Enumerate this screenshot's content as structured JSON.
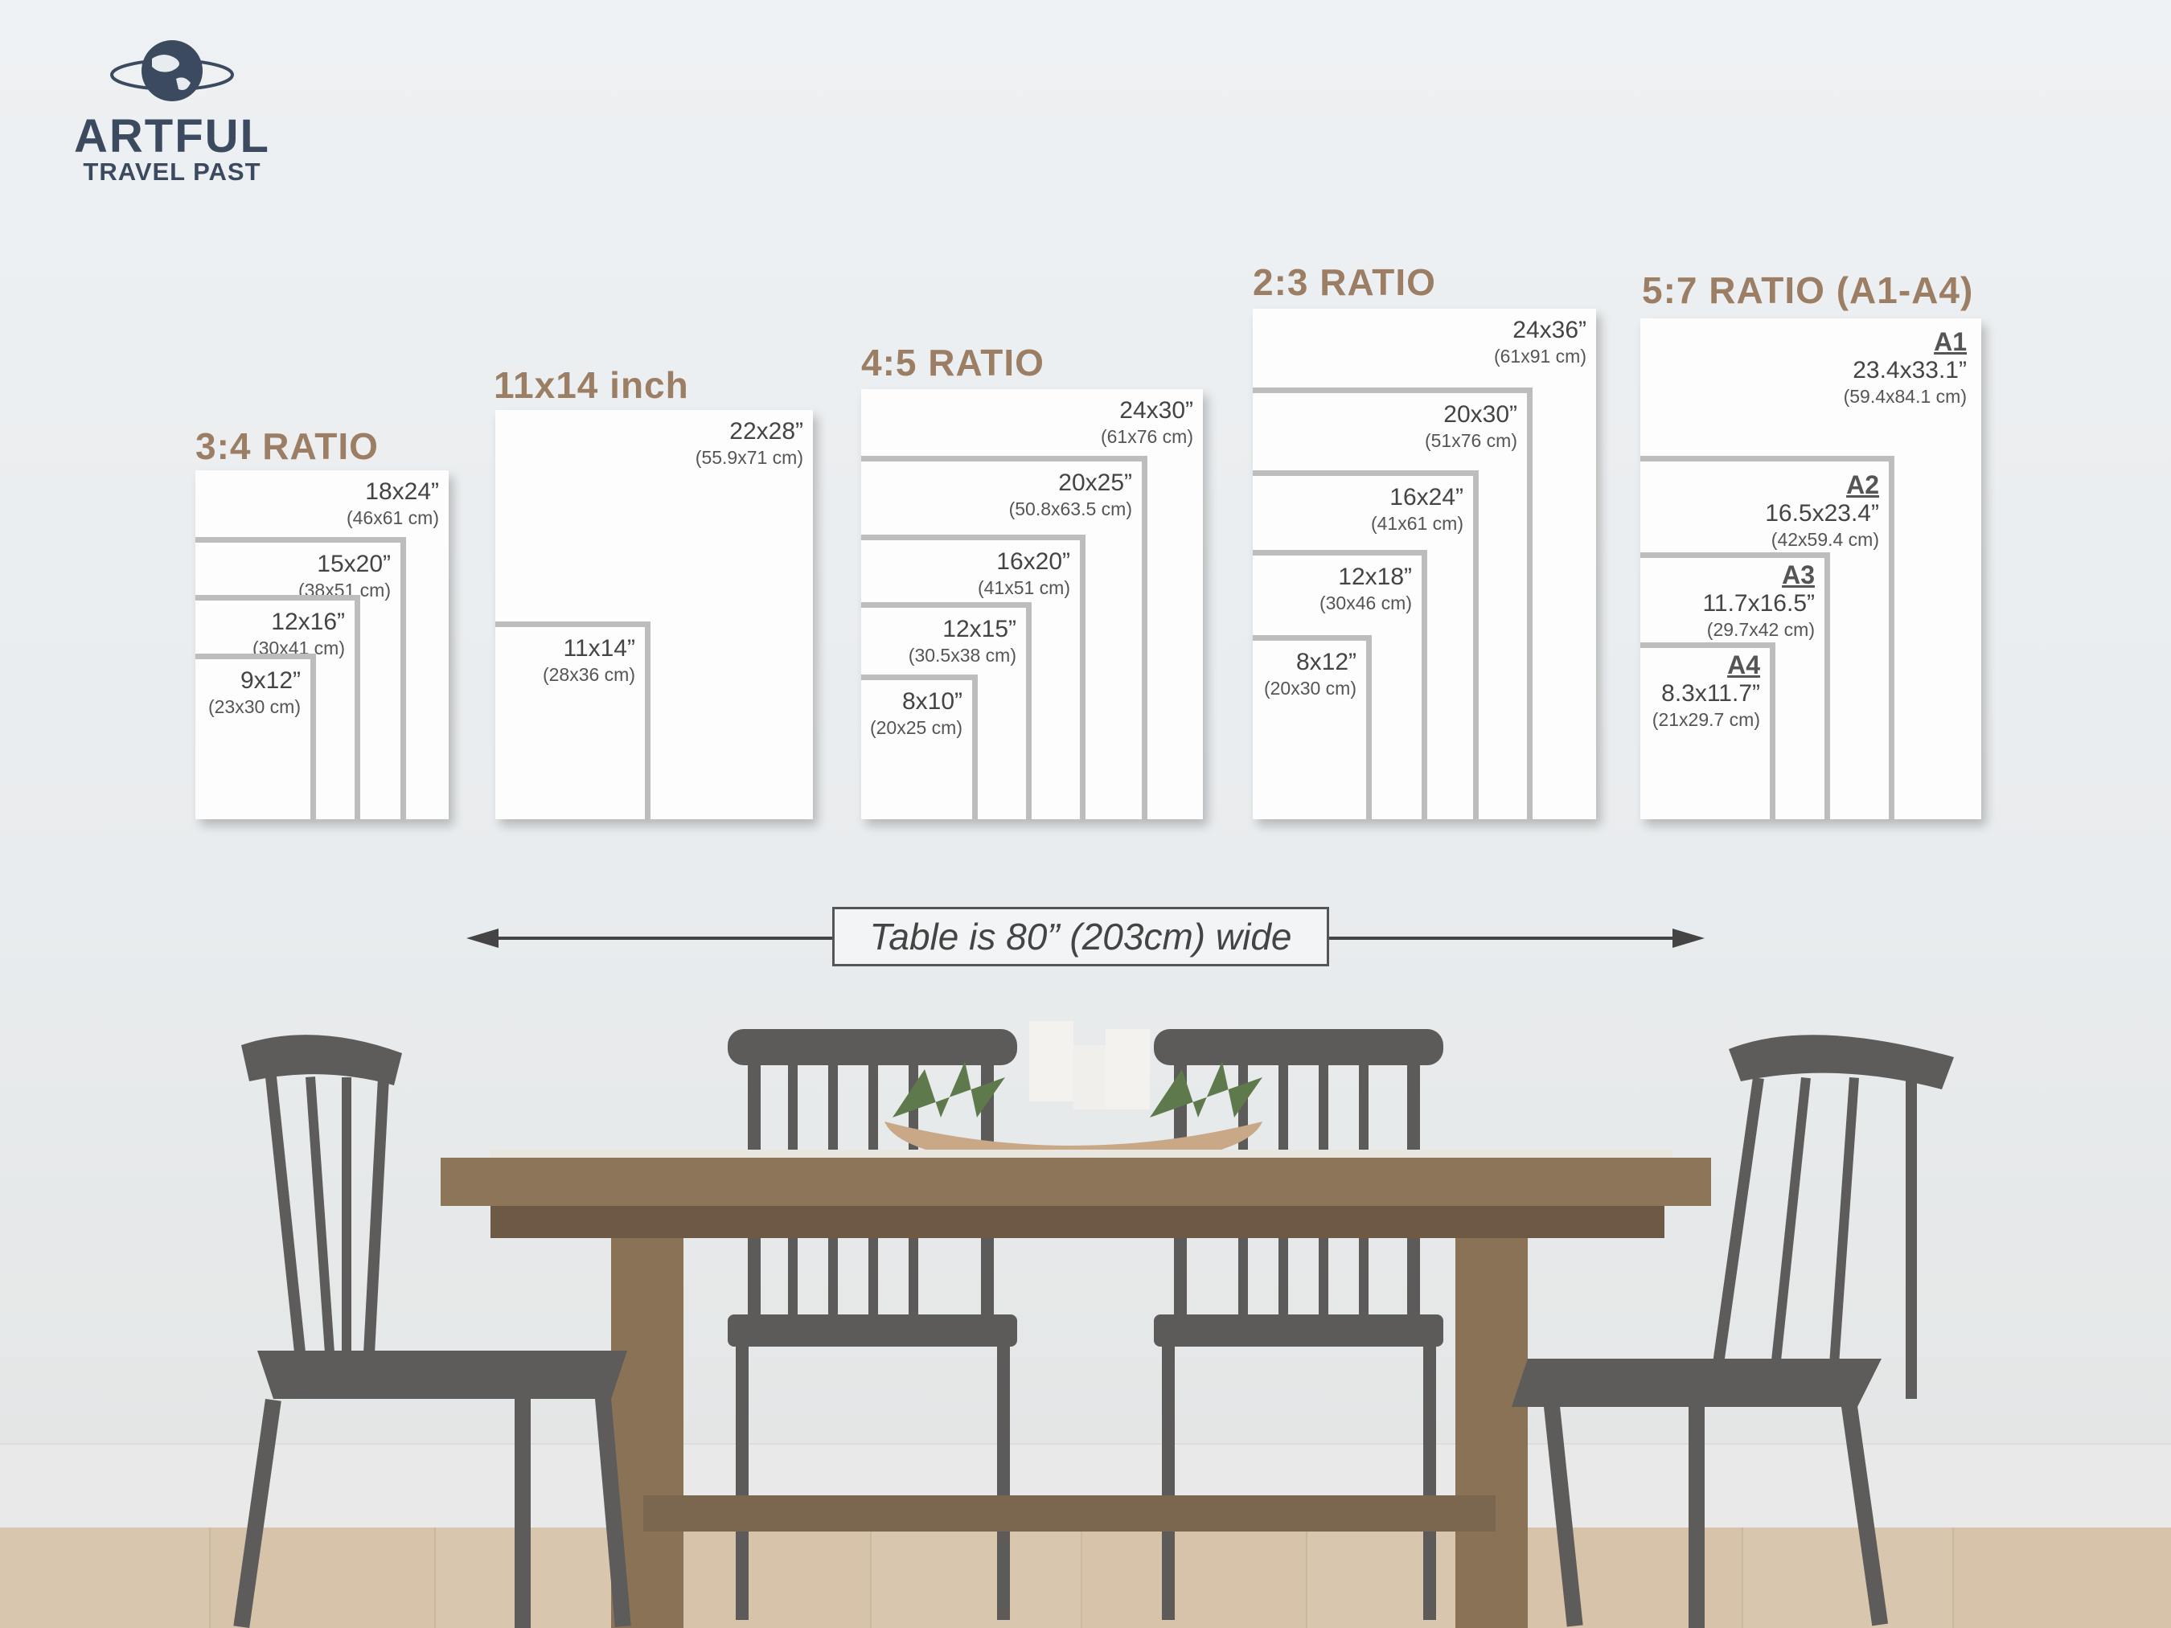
{
  "brand": {
    "name_line1": "ARTFUL",
    "name_line2": "TRAVEL PAST",
    "logo_icon": "globe-icon"
  },
  "groups": [
    {
      "title": "3:4 RATIO",
      "sizes": [
        {
          "inch": "18x24”",
          "cm": "(46x61 cm)"
        },
        {
          "inch": "15x20”",
          "cm": "(38x51 cm)"
        },
        {
          "inch": "12x16”",
          "cm": "(30x41 cm)"
        },
        {
          "inch": "9x12”",
          "cm": "(23x30 cm)"
        }
      ]
    },
    {
      "title": "11x14 inch",
      "sizes": [
        {
          "inch": "22x28”",
          "cm": "(55.9x71 cm)"
        },
        {
          "inch": "11x14”",
          "cm": "(28x36 cm)"
        }
      ]
    },
    {
      "title": "4:5 RATIO",
      "sizes": [
        {
          "inch": "24x30”",
          "cm": "(61x76 cm)"
        },
        {
          "inch": "20x25”",
          "cm": "(50.8x63.5 cm)"
        },
        {
          "inch": "16x20”",
          "cm": "(41x51 cm)"
        },
        {
          "inch": "12x15”",
          "cm": "(30.5x38 cm)"
        },
        {
          "inch": "8x10”",
          "cm": "(20x25 cm)"
        }
      ]
    },
    {
      "title": "2:3 RATIO",
      "sizes": [
        {
          "inch": "24x36”",
          "cm": "(61x91 cm)"
        },
        {
          "inch": "20x30”",
          "cm": "(51x76 cm)"
        },
        {
          "inch": "16x24”",
          "cm": "(41x61 cm)"
        },
        {
          "inch": "12x18”",
          "cm": "(30x46 cm)"
        },
        {
          "inch": "8x12”",
          "cm": "(20x30 cm)"
        }
      ]
    },
    {
      "title": "5:7 RATIO (A1-A4)",
      "sizes": [
        {
          "name": "A1",
          "inch": "23.4x33.1”",
          "cm": "(59.4x84.1 cm)"
        },
        {
          "name": "A2",
          "inch": "16.5x23.4”",
          "cm": "(42x59.4 cm)"
        },
        {
          "name": "A3",
          "inch": "11.7x16.5”",
          "cm": "(29.7x42 cm)"
        },
        {
          "name": "A4",
          "inch": "8.3x11.7”",
          "cm": "(21x29.7 cm)"
        }
      ]
    }
  ],
  "scale_note": "Table is 80” (203cm) wide",
  "colors": {
    "title": "#9b7e64",
    "logo": "#3c4a60",
    "frame": "#bdbdbd"
  }
}
